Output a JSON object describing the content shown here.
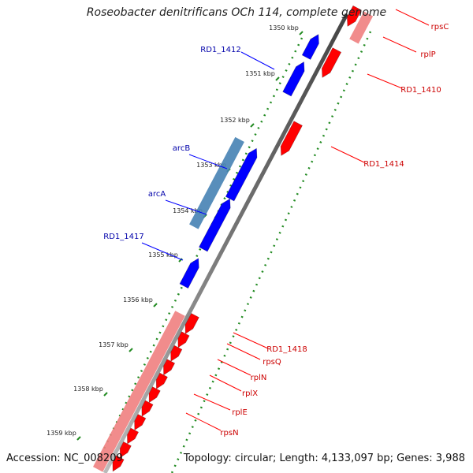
{
  "title": "Roseobacter denitrificans OCh 114, complete genome",
  "footer": {
    "accession": "Accession: NC_008209",
    "summary": "Topology: circular; Length: 4,133,097 bp; Genes: 3,988"
  },
  "colors": {
    "forward_gene": "#0000ff",
    "reverse_gene": "#ff0000",
    "forward_label": "#0000aa",
    "reverse_label": "#cc0000",
    "operon_blue": "#4682b4",
    "operon_red": "#f08080",
    "backbone": "#888888",
    "gc_track": "#228b22"
  },
  "icons": [
    "gene-arrow-icon"
  ],
  "ticks": [
    {
      "label": "1350 kbp",
      "kbp": 1350
    },
    {
      "label": "1351 kbp",
      "kbp": 1351
    },
    {
      "label": "1352 kbp",
      "kbp": 1352
    },
    {
      "label": "1353 kbp",
      "kbp": 1353
    },
    {
      "label": "1354 kbp",
      "kbp": 1354
    },
    {
      "label": "1355 kbp",
      "kbp": 1355
    },
    {
      "label": "1356 kbp",
      "kbp": 1356
    },
    {
      "label": "1357 kbp",
      "kbp": 1357
    },
    {
      "label": "1358 kbp",
      "kbp": 1358
    },
    {
      "label": "1359 kbp",
      "kbp": 1359
    }
  ],
  "forward_labels": [
    {
      "name": "RD1_1412"
    },
    {
      "name": "arcB"
    },
    {
      "name": "arcA"
    },
    {
      "name": "RD1_1417"
    }
  ],
  "reverse_labels": [
    {
      "name": "rpsC"
    },
    {
      "name": "rplP"
    },
    {
      "name": "RD1_1410"
    },
    {
      "name": "RD1_1414"
    },
    {
      "name": "RD1_1418"
    },
    {
      "name": "rpsQ"
    },
    {
      "name": "rplN"
    },
    {
      "name": "rplX"
    },
    {
      "name": "rplE"
    },
    {
      "name": "rpsN"
    }
  ]
}
